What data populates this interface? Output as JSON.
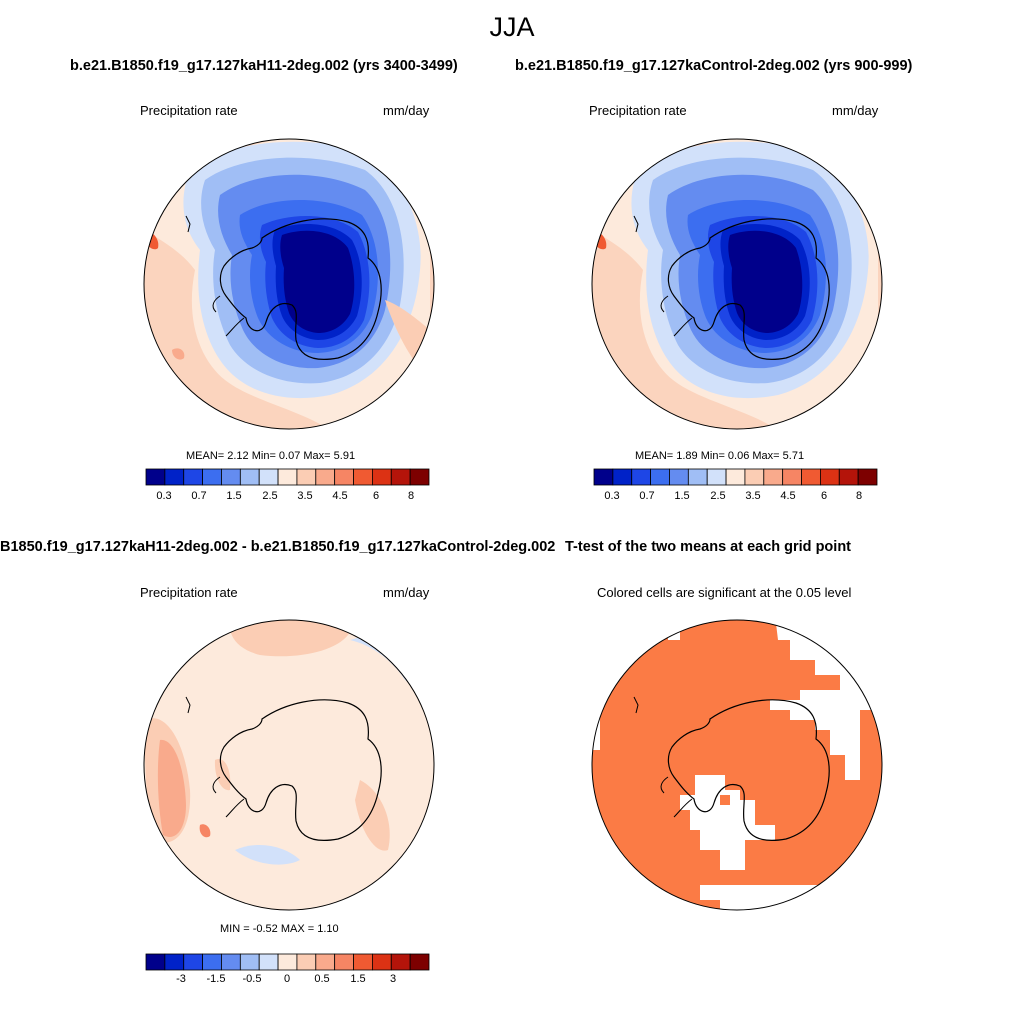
{
  "figure_title": "JJA",
  "panels": {
    "top_left": {
      "title": "b.e21.B1850.f19_g17.127kaH11-2deg.002 (yrs 3400-3499)",
      "variable": "Precipitation rate",
      "units": "mm/day",
      "stats": "MEAN=   2.12  Min=   0.07  Max=    5.91"
    },
    "top_right": {
      "title": "b.e21.B1850.f19_g17.127kaControl-2deg.002 (yrs 900-999)",
      "variable": "Precipitation rate",
      "units": "mm/day",
      "stats": "MEAN=   1.89  Min=   0.06  Max=    5.71"
    },
    "bottom_left": {
      "title": "B1850.f19_g17.127kaH11-2deg.002 - b.e21.B1850.f19_g17.127kaControl-2deg.002",
      "variable": "Precipitation rate",
      "units": "mm/day",
      "stats": "MIN =  -0.52 MAX =    1.10"
    },
    "bottom_right": {
      "title": "T-test of the two means at each grid point",
      "subtitle": "Colored cells are significant at the 0.05 level"
    }
  },
  "colorbars": {
    "top": {
      "tick_labels": [
        "0.3",
        "0.7",
        "1.5",
        "2.5",
        "3.5",
        "4.5",
        "6",
        "8"
      ],
      "colors": [
        "#00008b",
        "#0022c8",
        "#1e46e6",
        "#3c6ef0",
        "#648cf0",
        "#a0bef5",
        "#d2e1fa",
        "#fdeadc",
        "#fbcdb4",
        "#f9aa8c",
        "#f68564",
        "#f05a32",
        "#dc3214",
        "#b4140a",
        "#7d0000"
      ]
    },
    "bottom": {
      "tick_labels": [
        "-3",
        "-1.5",
        "-0.5",
        "0",
        "0.5",
        "1.5",
        "3"
      ],
      "colors": [
        "#00008b",
        "#0022c8",
        "#1e46e6",
        "#3c6ef0",
        "#648cf0",
        "#a0bef5",
        "#d2e1fa",
        "#fdeadc",
        "#fbcdb4",
        "#f9aa8c",
        "#f68564",
        "#f05a32",
        "#dc3214",
        "#b4140a",
        "#7d0000"
      ]
    }
  },
  "significance_color": "#fb7b45"
}
